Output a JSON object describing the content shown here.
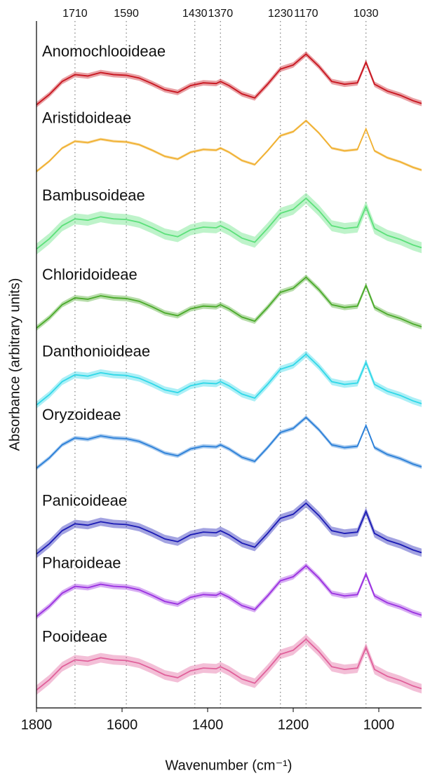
{
  "chart_data": {
    "type": "line",
    "xlabel": "Wavenumber (cm⁻¹)",
    "ylabel": "Absorbance (arbitrary units)",
    "xlim": [
      1800,
      900
    ],
    "xticks": [
      1800,
      1600,
      1400,
      1200,
      1000
    ],
    "x2ticks": [
      1710,
      1590,
      1430,
      1370,
      1230,
      1170,
      1030
    ],
    "ylim": [
      0,
      100
    ],
    "x": [
      1800,
      1770,
      1740,
      1710,
      1680,
      1650,
      1620,
      1590,
      1560,
      1530,
      1500,
      1470,
      1440,
      1410,
      1380,
      1370,
      1350,
      1320,
      1290,
      1260,
      1230,
      1200,
      1170,
      1140,
      1110,
      1080,
      1050,
      1030,
      1010,
      980,
      950,
      920,
      900
    ],
    "series": [
      {
        "name": "Anomochlooideae",
        "color": "#c8141e",
        "spread": 0.4,
        "values": [
          87.8,
          89.3,
          91.2,
          92.2,
          92.0,
          92.5,
          92.2,
          92.1,
          91.7,
          90.9,
          90.0,
          89.6,
          90.6,
          91.0,
          90.9,
          91.2,
          90.6,
          89.4,
          88.8,
          90.8,
          93.0,
          93.6,
          95.2,
          93.4,
          91.2,
          90.8,
          91.0,
          94.0,
          90.8,
          89.8,
          89.2,
          88.4,
          88.0
        ]
      },
      {
        "name": "Aristidoideae",
        "color": "#f0b030",
        "spread": 0.2,
        "values": [
          78.1,
          79.6,
          81.5,
          82.5,
          82.3,
          82.8,
          82.5,
          82.4,
          82.0,
          81.2,
          80.3,
          79.9,
          80.9,
          81.3,
          81.2,
          81.5,
          80.9,
          79.7,
          79.1,
          81.1,
          83.3,
          83.9,
          85.5,
          83.7,
          81.5,
          81.1,
          81.3,
          84.3,
          81.1,
          80.1,
          79.5,
          78.7,
          78.3
        ]
      },
      {
        "name": "Bambusoideae",
        "color": "#5ce07a",
        "spread": 0.8,
        "values": [
          66.8,
          68.3,
          70.2,
          71.2,
          71.0,
          71.5,
          71.2,
          71.1,
          70.7,
          69.9,
          69.0,
          68.6,
          69.6,
          70.0,
          69.9,
          70.2,
          69.6,
          68.4,
          67.8,
          69.8,
          72.0,
          72.6,
          74.2,
          72.4,
          70.2,
          69.8,
          70.0,
          73.0,
          69.8,
          68.8,
          68.2,
          67.4,
          67.0
        ]
      },
      {
        "name": "Chloridoideae",
        "color": "#4aaa2a",
        "spread": 0.4,
        "values": [
          55.3,
          56.8,
          58.7,
          59.7,
          59.5,
          60.0,
          59.7,
          59.6,
          59.2,
          58.4,
          57.5,
          57.1,
          58.1,
          58.5,
          58.4,
          58.7,
          58.1,
          56.9,
          56.3,
          58.3,
          60.5,
          61.1,
          62.7,
          60.9,
          58.7,
          58.3,
          58.5,
          61.5,
          58.3,
          57.3,
          56.7,
          55.9,
          55.5
        ]
      },
      {
        "name": "Danthonioideae",
        "color": "#30d8e8",
        "spread": 0.5,
        "values": [
          44.1,
          45.6,
          47.5,
          48.5,
          48.3,
          48.8,
          48.5,
          48.4,
          48.0,
          47.2,
          46.3,
          45.9,
          46.9,
          47.3,
          47.2,
          47.5,
          46.9,
          45.7,
          45.1,
          47.1,
          49.3,
          49.9,
          51.5,
          49.7,
          47.5,
          47.1,
          47.3,
          50.3,
          47.1,
          46.1,
          45.5,
          44.7,
          44.3
        ]
      },
      {
        "name": "Oryzoideae",
        "color": "#2a7fd8",
        "spread": 0.3,
        "values": [
          34.9,
          36.4,
          38.3,
          39.3,
          39.1,
          39.6,
          39.3,
          39.2,
          38.8,
          38.0,
          37.1,
          36.7,
          37.7,
          38.1,
          38.0,
          38.3,
          37.7,
          36.5,
          35.9,
          37.9,
          40.1,
          40.7,
          42.3,
          40.5,
          38.3,
          37.9,
          38.1,
          41.1,
          37.9,
          36.9,
          36.3,
          35.5,
          35.1
        ]
      },
      {
        "name": "Panicoideae",
        "color": "#1a1ab4",
        "spread": 0.6,
        "values": [
          22.4,
          23.9,
          25.8,
          26.8,
          26.6,
          27.1,
          26.8,
          26.7,
          26.3,
          25.5,
          24.6,
          24.2,
          25.2,
          25.6,
          25.5,
          25.8,
          25.2,
          24.0,
          23.4,
          25.4,
          27.6,
          28.2,
          29.8,
          28.0,
          25.8,
          25.4,
          25.6,
          28.6,
          25.4,
          24.4,
          23.8,
          23.0,
          22.6
        ]
      },
      {
        "name": "Pharoideae",
        "color": "#9a30e0",
        "spread": 0.4,
        "values": [
          13.3,
          14.8,
          16.7,
          17.7,
          17.5,
          18.0,
          17.7,
          17.6,
          17.2,
          16.4,
          15.5,
          15.1,
          16.1,
          16.5,
          16.4,
          16.7,
          16.1,
          14.9,
          14.3,
          16.3,
          18.5,
          19.1,
          20.7,
          18.9,
          16.7,
          16.3,
          16.5,
          19.5,
          16.3,
          15.3,
          14.7,
          13.9,
          13.5
        ]
      },
      {
        "name": "Pooideae",
        "color": "#e0609a",
        "spread": 0.7,
        "values": [
          2.6,
          4.1,
          6.0,
          7.0,
          6.8,
          7.3,
          7.0,
          6.9,
          6.5,
          5.7,
          4.8,
          4.4,
          5.4,
          5.8,
          5.7,
          6.0,
          5.4,
          4.2,
          3.6,
          5.6,
          7.8,
          8.4,
          10.0,
          8.2,
          6.0,
          5.6,
          5.8,
          8.8,
          5.6,
          4.6,
          4.0,
          3.2,
          2.8
        ]
      }
    ]
  }
}
